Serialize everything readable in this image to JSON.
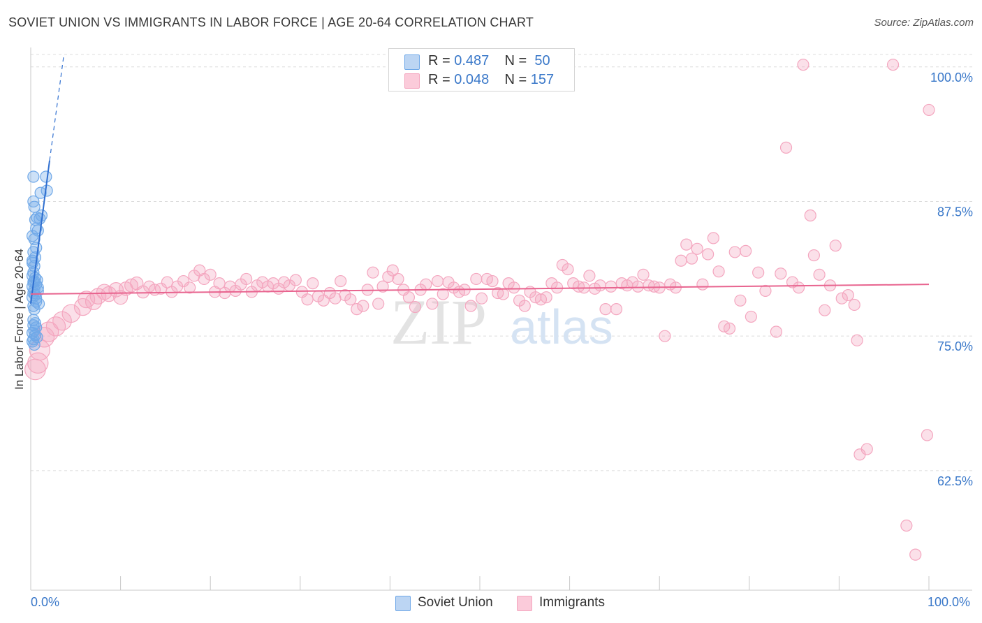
{
  "title": "SOVIET UNION VS IMMIGRANTS IN LABOR FORCE | AGE 20-64 CORRELATION CHART",
  "source": "Source: ZipAtlas.com",
  "watermark": {
    "zip": "ZIP",
    "atlas": "atlas"
  },
  "legend_top": {
    "r_label": "R =",
    "n_label": "N =",
    "rows": [
      {
        "r": "0.487",
        "n": "50"
      },
      {
        "r": "0.048",
        "n": "157"
      }
    ]
  },
  "x_axis": {
    "min_label": "0.0%",
    "max_label": "100.0%"
  },
  "chart_data": {
    "type": "scatter",
    "title": "SOVIET UNION VS IMMIGRANTS IN LABOR FORCE | AGE 20-64 CORRELATION CHART",
    "xlabel": "",
    "ylabel": "In Labor Force | Age 20-64",
    "xlim": [
      0,
      100
    ],
    "ylim": [
      51.4,
      101.8
    ],
    "y_ticks": [
      62.5,
      75.0,
      87.5,
      100.0
    ],
    "y_tick_labels": [
      "62.5%",
      "75.0%",
      "87.5%",
      "100.0%"
    ],
    "x_tick_labels": [
      "0.0%",
      "100.0%"
    ],
    "grid": "horizontal dashed",
    "legend": "top-center and bottom",
    "series": [
      {
        "name": "Soviet Union",
        "color": "#6fa8e8",
        "line_color": "#2f6fd0",
        "r": 0.487,
        "n": 50,
        "trend": {
          "x0": 0.0,
          "y0": 78.0,
          "x1": 2.1,
          "y1": 91.3,
          "dash_to_x": 3.7,
          "dash_to_y": 101.2
        },
        "points": [
          [
            0.3,
            89.8
          ],
          [
            1.7,
            89.8
          ],
          [
            1.8,
            88.5
          ],
          [
            1.1,
            88.3
          ],
          [
            0.3,
            87.5
          ],
          [
            0.4,
            87.0
          ],
          [
            1.2,
            86.2
          ],
          [
            1.0,
            85.9
          ],
          [
            0.5,
            85.8
          ],
          [
            0.6,
            85.0
          ],
          [
            0.8,
            84.8
          ],
          [
            0.2,
            84.3
          ],
          [
            0.4,
            84.0
          ],
          [
            0.6,
            83.2
          ],
          [
            0.3,
            82.8
          ],
          [
            0.5,
            82.3
          ],
          [
            0.2,
            81.8
          ],
          [
            0.4,
            81.5
          ],
          [
            0.3,
            80.9
          ],
          [
            0.2,
            80.6
          ],
          [
            0.5,
            80.4
          ],
          [
            0.7,
            80.2
          ],
          [
            0.3,
            80.0
          ],
          [
            0.6,
            79.8
          ],
          [
            0.2,
            79.6
          ],
          [
            0.4,
            79.3
          ],
          [
            0.8,
            79.2
          ],
          [
            0.3,
            79.0
          ],
          [
            0.5,
            78.8
          ],
          [
            0.2,
            78.6
          ],
          [
            0.6,
            78.2
          ],
          [
            0.9,
            78.0
          ],
          [
            0.3,
            77.8
          ],
          [
            0.4,
            77.5
          ],
          [
            0.5,
            76.2
          ],
          [
            0.3,
            76.0
          ],
          [
            0.6,
            75.8
          ],
          [
            0.4,
            75.5
          ],
          [
            0.2,
            75.3
          ],
          [
            0.5,
            75.1
          ],
          [
            0.7,
            74.9
          ],
          [
            0.3,
            74.7
          ],
          [
            0.2,
            74.5
          ],
          [
            0.4,
            74.2
          ],
          [
            0.6,
            78.5
          ],
          [
            0.2,
            82.0
          ],
          [
            0.7,
            86.0
          ],
          [
            0.8,
            79.5
          ],
          [
            0.4,
            80.1
          ],
          [
            0.3,
            76.5
          ]
        ]
      },
      {
        "name": "Immigrants",
        "color": "#f4a6bf",
        "line_color": "#e8648f",
        "r": 0.048,
        "n": 157,
        "trend": {
          "x0": 0.0,
          "y0": 78.9,
          "x1": 100.0,
          "y1": 79.8
        },
        "points": [
          [
            0.5,
            71.9
          ],
          [
            1.0,
            73.7
          ],
          [
            2.0,
            75.4
          ],
          [
            2.8,
            75.9
          ],
          [
            3.5,
            76.4
          ],
          [
            4.5,
            77.1
          ],
          [
            5.8,
            77.7
          ],
          [
            6.2,
            78.4
          ],
          [
            7.0,
            78.2
          ],
          [
            7.5,
            78.7
          ],
          [
            8.2,
            79.1
          ],
          [
            8.7,
            78.9
          ],
          [
            9.5,
            79.3
          ],
          [
            10.0,
            78.6
          ],
          [
            10.6,
            79.4
          ],
          [
            11.2,
            79.7
          ],
          [
            11.8,
            79.9
          ],
          [
            12.5,
            79.1
          ],
          [
            13.2,
            79.6
          ],
          [
            13.8,
            79.3
          ],
          [
            14.5,
            79.4
          ],
          [
            15.2,
            80.0
          ],
          [
            15.7,
            79.1
          ],
          [
            16.3,
            79.6
          ],
          [
            17.0,
            80.1
          ],
          [
            17.7,
            79.5
          ],
          [
            18.2,
            80.6
          ],
          [
            18.8,
            81.1
          ],
          [
            19.3,
            80.3
          ],
          [
            20.0,
            80.7
          ],
          [
            20.5,
            79.1
          ],
          [
            21.0,
            79.9
          ],
          [
            21.6,
            79.0
          ],
          [
            22.2,
            79.6
          ],
          [
            22.8,
            79.2
          ],
          [
            23.4,
            79.8
          ],
          [
            24.0,
            80.3
          ],
          [
            24.6,
            79.1
          ],
          [
            25.2,
            79.7
          ],
          [
            25.8,
            80.0
          ],
          [
            26.4,
            79.6
          ],
          [
            27.0,
            79.9
          ],
          [
            27.6,
            79.4
          ],
          [
            28.2,
            80.0
          ],
          [
            28.8,
            79.7
          ],
          [
            29.5,
            80.2
          ],
          [
            30.2,
            79.1
          ],
          [
            30.8,
            78.4
          ],
          [
            31.4,
            79.9
          ],
          [
            32.0,
            78.7
          ],
          [
            32.6,
            78.3
          ],
          [
            33.3,
            79.0
          ],
          [
            33.9,
            78.5
          ],
          [
            34.5,
            80.1
          ],
          [
            35.0,
            78.8
          ],
          [
            35.6,
            78.4
          ],
          [
            36.3,
            77.5
          ],
          [
            37.0,
            77.8
          ],
          [
            37.5,
            79.3
          ],
          [
            38.1,
            80.9
          ],
          [
            38.7,
            78.0
          ],
          [
            39.2,
            79.6
          ],
          [
            39.8,
            80.5
          ],
          [
            40.3,
            81.1
          ],
          [
            40.9,
            80.3
          ],
          [
            41.5,
            79.3
          ],
          [
            42.1,
            78.6
          ],
          [
            42.8,
            77.7
          ],
          [
            43.4,
            79.3
          ],
          [
            44.0,
            79.8
          ],
          [
            44.7,
            78.0
          ],
          [
            45.3,
            80.1
          ],
          [
            45.9,
            78.9
          ],
          [
            46.5,
            80.0
          ],
          [
            47.1,
            79.5
          ],
          [
            47.7,
            79.1
          ],
          [
            48.3,
            79.3
          ],
          [
            49.0,
            77.8
          ],
          [
            49.6,
            80.3
          ],
          [
            50.2,
            78.5
          ],
          [
            50.8,
            80.3
          ],
          [
            51.4,
            80.1
          ],
          [
            52.0,
            79.0
          ],
          [
            52.6,
            78.9
          ],
          [
            53.2,
            79.9
          ],
          [
            53.8,
            79.5
          ],
          [
            54.4,
            78.3
          ],
          [
            55.0,
            77.8
          ],
          [
            55.6,
            79.1
          ],
          [
            56.2,
            78.6
          ],
          [
            56.8,
            78.4
          ],
          [
            57.4,
            78.6
          ],
          [
            58.0,
            79.9
          ],
          [
            58.6,
            79.5
          ],
          [
            59.2,
            81.6
          ],
          [
            59.8,
            81.2
          ],
          [
            60.4,
            79.9
          ],
          [
            61.0,
            79.6
          ],
          [
            61.6,
            79.5
          ],
          [
            62.2,
            80.6
          ],
          [
            62.8,
            79.4
          ],
          [
            63.4,
            79.7
          ],
          [
            64.0,
            77.5
          ],
          [
            64.6,
            79.6
          ],
          [
            65.2,
            77.5
          ],
          [
            65.8,
            79.9
          ],
          [
            66.4,
            79.7
          ],
          [
            67.0,
            80.0
          ],
          [
            67.6,
            79.6
          ],
          [
            68.2,
            80.7
          ],
          [
            68.8,
            79.7
          ],
          [
            69.4,
            79.6
          ],
          [
            70.0,
            79.5
          ],
          [
            70.6,
            75.0
          ],
          [
            71.2,
            79.8
          ],
          [
            71.8,
            79.5
          ],
          [
            72.4,
            82.0
          ],
          [
            73.0,
            83.5
          ],
          [
            73.6,
            82.2
          ],
          [
            74.2,
            83.1
          ],
          [
            74.8,
            79.8
          ],
          [
            75.4,
            82.6
          ],
          [
            76.0,
            84.1
          ],
          [
            76.6,
            81.0
          ],
          [
            77.2,
            75.9
          ],
          [
            77.8,
            75.7
          ],
          [
            78.4,
            82.8
          ],
          [
            79.0,
            78.3
          ],
          [
            79.6,
            82.9
          ],
          [
            80.2,
            76.8
          ],
          [
            81.0,
            80.9
          ],
          [
            81.8,
            79.2
          ],
          [
            83.0,
            75.4
          ],
          [
            83.5,
            80.8
          ],
          [
            84.1,
            92.5
          ],
          [
            84.8,
            80.0
          ],
          [
            85.5,
            79.5
          ],
          [
            86.0,
            100.2
          ],
          [
            86.8,
            86.2
          ],
          [
            87.2,
            82.5
          ],
          [
            87.8,
            80.7
          ],
          [
            88.4,
            77.4
          ],
          [
            89.0,
            79.7
          ],
          [
            89.6,
            83.4
          ],
          [
            90.3,
            78.5
          ],
          [
            91.0,
            78.8
          ],
          [
            91.7,
            77.9
          ],
          [
            92.0,
            74.6
          ],
          [
            92.3,
            64.0
          ],
          [
            93.1,
            64.5
          ],
          [
            96.0,
            100.2
          ],
          [
            97.5,
            57.4
          ],
          [
            98.5,
            54.7
          ],
          [
            99.8,
            65.8
          ],
          [
            100.0,
            96.0
          ],
          [
            0.8,
            72.5
          ],
          [
            1.5,
            74.9
          ]
        ]
      }
    ]
  }
}
